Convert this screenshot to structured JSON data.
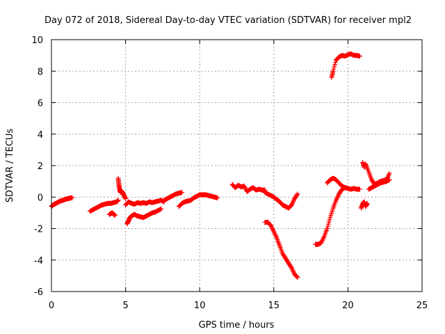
{
  "chart_data": {
    "type": "scatter",
    "title": "Day 072 of 2018, Sidereal Day-to-day VTEC variation (SDTVAR) for receiver mpl2",
    "xlabel": "GPS time / hours",
    "ylabel": "SDTVAR / TECUs",
    "xlim": [
      0,
      25
    ],
    "ylim": [
      -6,
      10
    ],
    "xticks": [
      0,
      5,
      10,
      15,
      20,
      25
    ],
    "yticks": [
      -6,
      -4,
      -2,
      0,
      2,
      4,
      6,
      8,
      10
    ],
    "grid": true,
    "marker": "+",
    "color": "#ff0000",
    "segments": [
      {
        "name": "arc-1",
        "x": [
          0.0,
          0.1,
          0.2,
          0.3,
          0.4,
          0.5,
          0.6,
          0.7,
          0.8,
          0.9,
          1.0,
          1.1,
          1.2,
          1.3,
          1.4
        ],
        "y": [
          -0.6,
          -0.5,
          -0.45,
          -0.4,
          -0.35,
          -0.3,
          -0.25,
          -0.22,
          -0.2,
          -0.15,
          -0.12,
          -0.1,
          -0.08,
          -0.05,
          -0.05
        ]
      },
      {
        "name": "arc-2",
        "x": [
          2.6,
          2.8,
          3.0,
          3.2,
          3.4,
          3.6,
          3.8,
          4.0,
          4.2,
          4.4,
          4.5
        ],
        "y": [
          -0.9,
          -0.8,
          -0.7,
          -0.6,
          -0.5,
          -0.45,
          -0.4,
          -0.4,
          -0.35,
          -0.3,
          -0.2
        ]
      },
      {
        "name": "arc-3",
        "x": [
          3.9,
          4.0,
          4.1,
          4.2,
          4.3
        ],
        "y": [
          -1.1,
          -1.05,
          -1.0,
          -1.1,
          -1.15
        ]
      },
      {
        "name": "arc-4",
        "x": [
          4.5,
          4.55,
          4.6,
          4.65,
          4.7,
          4.8,
          4.9,
          5.0
        ],
        "y": [
          1.2,
          0.8,
          0.5,
          0.3,
          0.4,
          0.3,
          0.1,
          -0.1
        ]
      },
      {
        "name": "arc-5",
        "x": [
          5.0,
          5.2,
          5.4,
          5.6,
          5.8,
          6.0,
          6.2,
          6.4,
          6.6,
          6.8,
          7.0,
          7.2,
          7.4,
          7.6
        ],
        "y": [
          -0.5,
          -0.3,
          -0.4,
          -0.45,
          -0.35,
          -0.4,
          -0.35,
          -0.4,
          -0.3,
          -0.35,
          -0.3,
          -0.25,
          -0.2,
          -0.3
        ]
      },
      {
        "name": "arc-6",
        "x": [
          5.1,
          5.2,
          5.3,
          5.4,
          5.6,
          5.8,
          6.0,
          6.2,
          6.4,
          6.6,
          6.8,
          7.0,
          7.2,
          7.4
        ],
        "y": [
          -1.7,
          -1.5,
          -1.3,
          -1.2,
          -1.1,
          -1.2,
          -1.25,
          -1.3,
          -1.2,
          -1.1,
          -1.0,
          -0.95,
          -0.85,
          -0.75
        ]
      },
      {
        "name": "arc-7",
        "x": [
          7.6,
          7.8,
          8.0,
          8.2,
          8.4,
          8.6,
          8.8
        ],
        "y": [
          -0.2,
          -0.1,
          0.0,
          0.1,
          0.2,
          0.25,
          0.3
        ]
      },
      {
        "name": "arc-8",
        "x": [
          8.6,
          8.8,
          9.0,
          9.2,
          9.4,
          9.6,
          9.8,
          10.0,
          10.2,
          10.4,
          10.6,
          10.8,
          11.0,
          11.2
        ],
        "y": [
          -0.6,
          -0.4,
          -0.3,
          -0.25,
          -0.2,
          -0.05,
          0.05,
          0.15,
          0.15,
          0.15,
          0.1,
          0.05,
          0.0,
          -0.05
        ]
      },
      {
        "name": "arc-9",
        "x": [
          12.2,
          12.4,
          12.6,
          12.8,
          13.0,
          13.2,
          13.4,
          13.6,
          13.8,
          14.0,
          14.2,
          14.4
        ],
        "y": [
          0.8,
          0.6,
          0.75,
          0.65,
          0.7,
          0.35,
          0.5,
          0.6,
          0.45,
          0.5,
          0.45,
          0.45
        ]
      },
      {
        "name": "arc-10",
        "x": [
          14.4,
          14.6,
          14.8,
          15.0,
          15.2,
          15.4,
          15.6,
          15.8,
          16.0,
          16.2,
          16.4,
          16.6
        ],
        "y": [
          0.3,
          0.2,
          0.1,
          0.0,
          -0.15,
          -0.3,
          -0.5,
          -0.6,
          -0.7,
          -0.5,
          -0.1,
          0.2
        ]
      },
      {
        "name": "arc-11",
        "x": [
          14.4,
          14.6,
          14.8,
          15.0,
          15.2,
          15.4,
          15.6,
          15.8,
          16.0,
          16.2,
          16.4,
          16.6
        ],
        "y": [
          -1.6,
          -1.6,
          -1.8,
          -2.2,
          -2.6,
          -3.1,
          -3.6,
          -3.9,
          -4.2,
          -4.5,
          -4.9,
          -5.1
        ]
      },
      {
        "name": "arc-12",
        "x": [
          17.8,
          18.0,
          18.2,
          18.4,
          18.6,
          18.8,
          19.0,
          19.2,
          19.4,
          19.6,
          19.8,
          20.0,
          20.2,
          20.4,
          20.6,
          20.8
        ],
        "y": [
          -3.0,
          -3.0,
          -2.9,
          -2.5,
          -2.0,
          -1.3,
          -0.7,
          -0.2,
          0.2,
          0.5,
          0.6,
          0.55,
          0.5,
          0.55,
          0.5,
          0.5
        ]
      },
      {
        "name": "arc-13",
        "x": [
          18.6,
          18.8,
          19.0,
          19.2,
          19.4,
          19.6,
          19.8
        ],
        "y": [
          0.9,
          1.1,
          1.2,
          1.1,
          0.9,
          0.7,
          0.6
        ]
      },
      {
        "name": "arc-14",
        "x": [
          18.9,
          19.0,
          19.2,
          19.4,
          19.6,
          19.8,
          20.0,
          20.2,
          20.4,
          20.6,
          20.8
        ],
        "y": [
          7.6,
          8.0,
          8.7,
          8.9,
          9.0,
          8.95,
          9.05,
          9.1,
          9.0,
          9.0,
          8.95
        ]
      },
      {
        "name": "arc-15",
        "x": [
          20.9,
          21.0,
          21.1,
          21.2,
          21.3
        ],
        "y": [
          -0.7,
          -0.4,
          -0.3,
          -0.6,
          -0.4
        ]
      },
      {
        "name": "arc-16",
        "x": [
          21.0,
          21.1,
          21.2,
          21.4,
          21.6,
          21.8,
          22.0,
          22.2,
          22.4,
          22.6,
          22.8
        ],
        "y": [
          2.2,
          1.9,
          2.1,
          1.6,
          1.1,
          0.8,
          0.9,
          1.0,
          1.05,
          1.1,
          1.5
        ]
      },
      {
        "name": "arc-17",
        "x": [
          21.4,
          21.6,
          21.8,
          22.0,
          22.2,
          22.4,
          22.6,
          22.8
        ],
        "y": [
          0.5,
          0.6,
          0.7,
          0.8,
          0.9,
          0.95,
          1.0,
          1.1
        ]
      }
    ]
  }
}
